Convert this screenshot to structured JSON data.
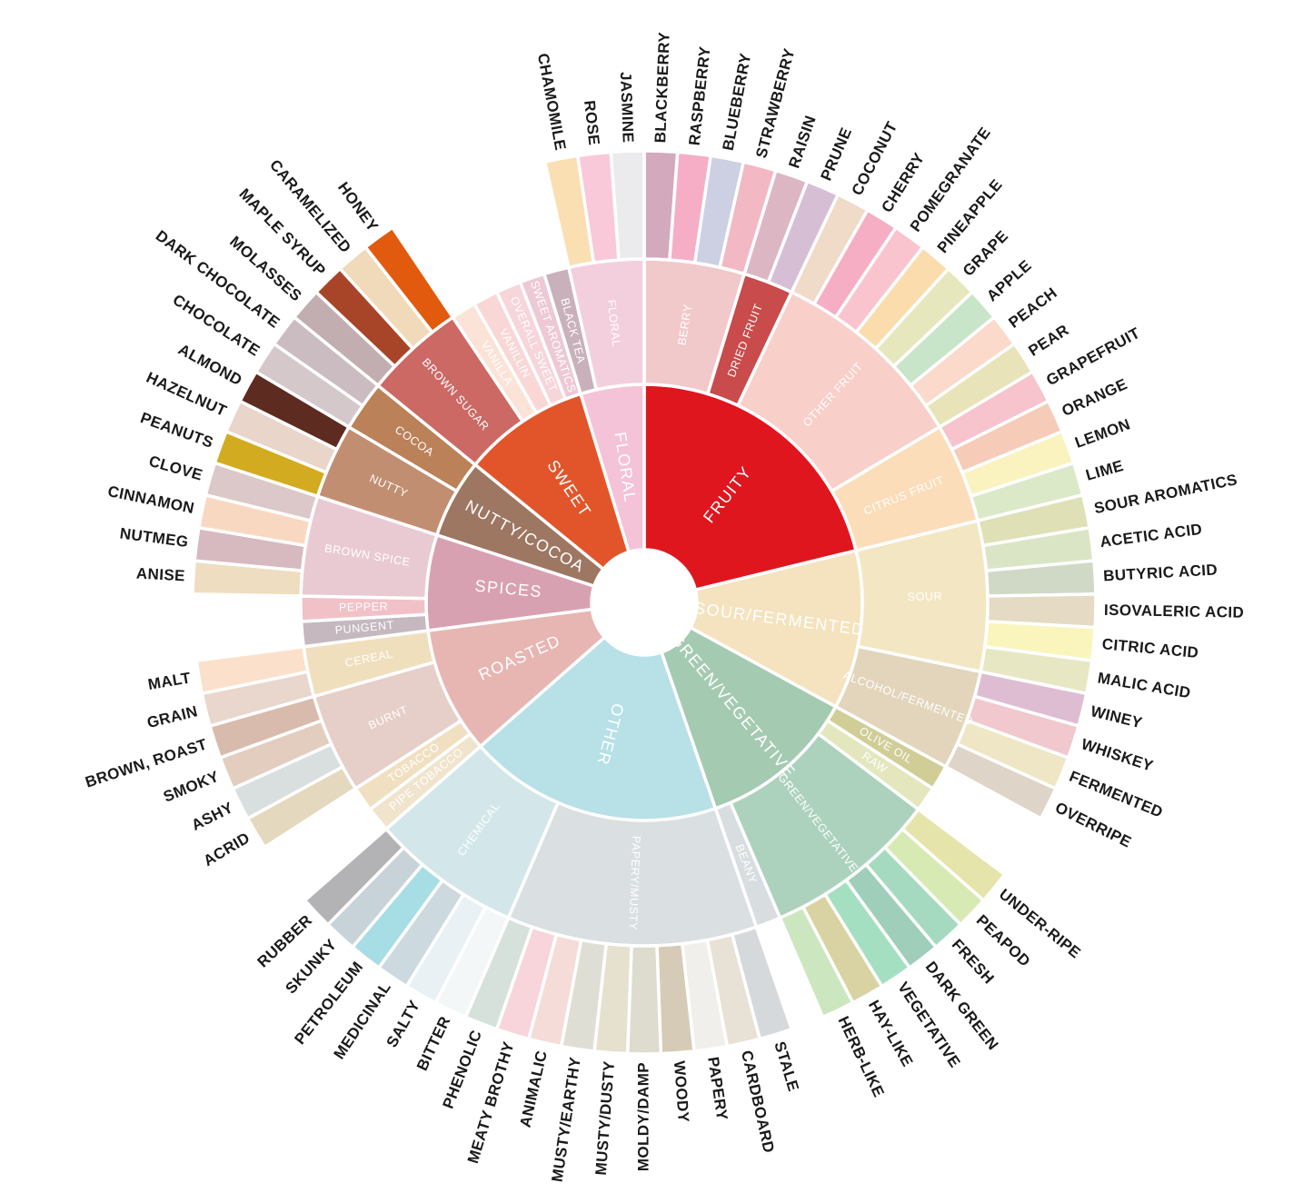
{
  "chart_data": {
    "type": "sunburst",
    "title": "",
    "layout": {
      "start_angle_deg": 0,
      "direction": "clockwise",
      "equal_leaf_angles": true,
      "total_leaves": 85,
      "rings": [
        "category",
        "subcategory",
        "flavor"
      ],
      "center_hole": true,
      "background": "#ffffff"
    },
    "groups": [
      {
        "name": "FRUITY",
        "color": "#E0161F",
        "children": [
          {
            "name": "BERRY",
            "color": "#F2C9CB",
            "children": [
              {
                "name": "BLACKBERRY",
                "color": "#D2A9BD"
              },
              {
                "name": "RASPBERRY",
                "color": "#F5AEC6"
              },
              {
                "name": "BLUEBERRY",
                "color": "#CDCFE3"
              },
              {
                "name": "STRAWBERRY",
                "color": "#F2B8C3"
              }
            ]
          },
          {
            "name": "DRIED FRUIT",
            "color": "#C94B4B",
            "children": [
              {
                "name": "RAISIN",
                "color": "#DDB6C4"
              },
              {
                "name": "PRUNE",
                "color": "#D6BFD4"
              }
            ]
          },
          {
            "name": "OTHER FRUIT",
            "color": "#F8CFC9",
            "children": [
              {
                "name": "COCONUT",
                "color": "#F0DAC8"
              },
              {
                "name": "CHERRY",
                "color": "#F5AEC4"
              },
              {
                "name": "POMEGRANATE",
                "color": "#F9C4CE"
              },
              {
                "name": "PINEAPPLE",
                "color": "#FBDCAC"
              },
              {
                "name": "GRAPE",
                "color": "#E7E7BE"
              },
              {
                "name": "APPLE",
                "color": "#C9E5C9"
              },
              {
                "name": "PEACH",
                "color": "#FBD9CB"
              },
              {
                "name": "PEAR",
                "color": "#E8E3B9"
              }
            ]
          },
          {
            "name": "CITRUS FRUIT",
            "color": "#FBDDBA",
            "children": [
              {
                "name": "GRAPEFRUIT",
                "color": "#F7C3CD"
              },
              {
                "name": "ORANGE",
                "color": "#F6CBB8"
              },
              {
                "name": "LEMON",
                "color": "#FAF3C0"
              },
              {
                "name": "LIME",
                "color": "#DCE9C8"
              }
            ]
          }
        ]
      },
      {
        "name": "SOUR/FERMENTED",
        "color": "#F4E3BE",
        "children": [
          {
            "name": "SOUR",
            "color": "#F3E7C3",
            "children": [
              {
                "name": "SOUR AROMATICS",
                "color": "#DFE0B6"
              },
              {
                "name": "ACETIC ACID",
                "color": "#DAE5C5"
              },
              {
                "name": "BUTYRIC ACID",
                "color": "#D0D9C6"
              },
              {
                "name": "ISOVALERIC ACID",
                "color": "#E5DBC5"
              },
              {
                "name": "CITRIC ACID",
                "color": "#FAF5BD"
              },
              {
                "name": "MALIC ACID",
                "color": "#E7E7C3"
              }
            ]
          },
          {
            "name": "ALCOHOL/FERMENTED",
            "color": "#E2D5BB",
            "children": [
              {
                "name": "WINEY",
                "color": "#DEBDD2"
              },
              {
                "name": "WHISKEY",
                "color": "#F0C8CE"
              },
              {
                "name": "FERMENTED",
                "color": "#EEE6C4"
              },
              {
                "name": "OVERRIPE",
                "color": "#DED4C7"
              }
            ]
          }
        ]
      },
      {
        "name": "GREEN/VEGETATIVE",
        "color": "#A5CAB2",
        "children": [
          {
            "name": "OLIVE OIL",
            "color": "#D0CD97"
          },
          {
            "name": "RAW",
            "color": "#E4E7BE"
          },
          {
            "name": "GREEN/VEGETATIVE",
            "color": "#ACD2BD",
            "children": [
              {
                "name": "UNDER-RIPE",
                "color": "#E5E5AB"
              },
              {
                "name": "PEAPOD",
                "color": "#D8EAB3"
              },
              {
                "name": "FRESH",
                "color": "#A6DAC0"
              },
              {
                "name": "DARK GREEN",
                "color": "#9FCEBA"
              },
              {
                "name": "VEGETATIVE",
                "color": "#A4DFC1"
              },
              {
                "name": "HAY-LIKE",
                "color": "#D9D3A3"
              },
              {
                "name": "HERB-LIKE",
                "color": "#CCE7C0"
              }
            ]
          },
          {
            "name": "BEANY",
            "color": "#D8DEE0"
          }
        ]
      },
      {
        "name": "OTHER",
        "color": "#B7E0E7",
        "children": [
          {
            "name": "PAPERY/MUSTY",
            "color": "#DADFE1",
            "children": [
              {
                "name": "STALE",
                "color": "#D6D9DB"
              },
              {
                "name": "CARDBOARD",
                "color": "#E7E2D5"
              },
              {
                "name": "PAPERY",
                "color": "#F0EFEB"
              },
              {
                "name": "WOODY",
                "color": "#D5CBB7"
              },
              {
                "name": "MOLDY/DAMP",
                "color": "#DEDCCF"
              },
              {
                "name": "MUSTY/DUSTY",
                "color": "#E6E0CE"
              },
              {
                "name": "MUSTY/EARTHY",
                "color": "#DFDED5"
              },
              {
                "name": "ANIMALIC",
                "color": "#F5DCD9"
              },
              {
                "name": "MEATY BROTHY",
                "color": "#F7D5DA"
              },
              {
                "name": "PHENOLIC",
                "color": "#D7E1DB"
              }
            ]
          },
          {
            "name": "CHEMICAL",
            "color": "#D3E7EA",
            "children": [
              {
                "name": "BITTER",
                "color": "#F3F7F8"
              },
              {
                "name": "SALTY",
                "color": "#E9F1F5"
              },
              {
                "name": "MEDICINAL",
                "color": "#CCD9DF"
              },
              {
                "name": "PETROLEUM",
                "color": "#A7DDE4"
              },
              {
                "name": "SKUNKY",
                "color": "#C7D3D9"
              },
              {
                "name": "RUBBER",
                "color": "#B3B3B5"
              }
            ]
          }
        ]
      },
      {
        "name": "ROASTED",
        "color": "#E7B6B3",
        "children": [
          {
            "name": "PIPE TOBACCO",
            "color": "#F0E4CD"
          },
          {
            "name": "TOBACCO",
            "color": "#F0E0C1"
          },
          {
            "name": "BURNT",
            "color": "#E6CEC9",
            "children": [
              {
                "name": "ACRID",
                "color": "#E4D9BE"
              },
              {
                "name": "ASHY",
                "color": "#D9DFDE"
              },
              {
                "name": "SMOKY",
                "color": "#E3CDBF"
              },
              {
                "name": "BROWN, ROAST",
                "color": "#D8BBAD"
              }
            ]
          },
          {
            "name": "CEREAL",
            "color": "#F0DFBD",
            "children": [
              {
                "name": "GRAIN",
                "color": "#E9D6CD"
              },
              {
                "name": "MALT",
                "color": "#FBE1CB"
              }
            ]
          }
        ]
      },
      {
        "name": "SPICES",
        "color": "#D8A1B1",
        "children": [
          {
            "name": "PUNGENT",
            "color": "#C5B8BF"
          },
          {
            "name": "PEPPER",
            "color": "#F2C1C7"
          },
          {
            "name": "BROWN SPICE",
            "color": "#E9CAD3",
            "children": [
              {
                "name": "ANISE",
                "color": "#EFDDC1"
              },
              {
                "name": "NUTMEG",
                "color": "#D7B9C0"
              },
              {
                "name": "CINNAMON",
                "color": "#F9D8C2"
              },
              {
                "name": "CLOVE",
                "color": "#DCC8C9"
              }
            ]
          }
        ]
      },
      {
        "name": "NUTTY/COCOA",
        "color": "#9D7762",
        "children": [
          {
            "name": "NUTTY",
            "color": "#C28E72",
            "children": [
              {
                "name": "PEANUTS",
                "color": "#D3AB20"
              },
              {
                "name": "HAZELNUT",
                "color": "#E9D5C9"
              },
              {
                "name": "ALMOND",
                "color": "#5E2B20"
              }
            ]
          },
          {
            "name": "COCOA",
            "color": "#BB8158",
            "children": [
              {
                "name": "CHOCOLATE",
                "color": "#D5C8CB"
              },
              {
                "name": "DARK CHOCOLATE",
                "color": "#CBBCC1"
              }
            ]
          }
        ]
      },
      {
        "name": "SWEET",
        "color": "#E2552A",
        "children": [
          {
            "name": "BROWN SUGAR",
            "color": "#CC6965",
            "children": [
              {
                "name": "MOLASSES",
                "color": "#C2AEB0"
              },
              {
                "name": "MAPLE SYRUP",
                "color": "#A84529"
              },
              {
                "name": "CARAMELIZED",
                "color": "#F0DAB9"
              },
              {
                "name": "HONEY",
                "color": "#E25A0E"
              }
            ]
          },
          {
            "name": "VANILLA",
            "color": "#FBE3D7"
          },
          {
            "name": "VANILLIN",
            "color": "#F9D7D7"
          },
          {
            "name": "OVERALL SWEET",
            "color": "#F6D5DB"
          },
          {
            "name": "SWEET AROMATICS",
            "color": "#ECC9D5"
          }
        ]
      },
      {
        "name": "FLORAL",
        "color": "#F4C3D8",
        "children": [
          {
            "name": "BLACK TEA",
            "color": "#C9B1BB"
          },
          {
            "name": "FLORAL",
            "color": "#F3CFDD",
            "children": [
              {
                "name": "CHAMOMILE",
                "color": "#F9DFB2"
              },
              {
                "name": "ROSE",
                "color": "#F9C9D9"
              },
              {
                "name": "JASMINE",
                "color": "#EBEBED"
              }
            ]
          }
        ]
      }
    ]
  }
}
